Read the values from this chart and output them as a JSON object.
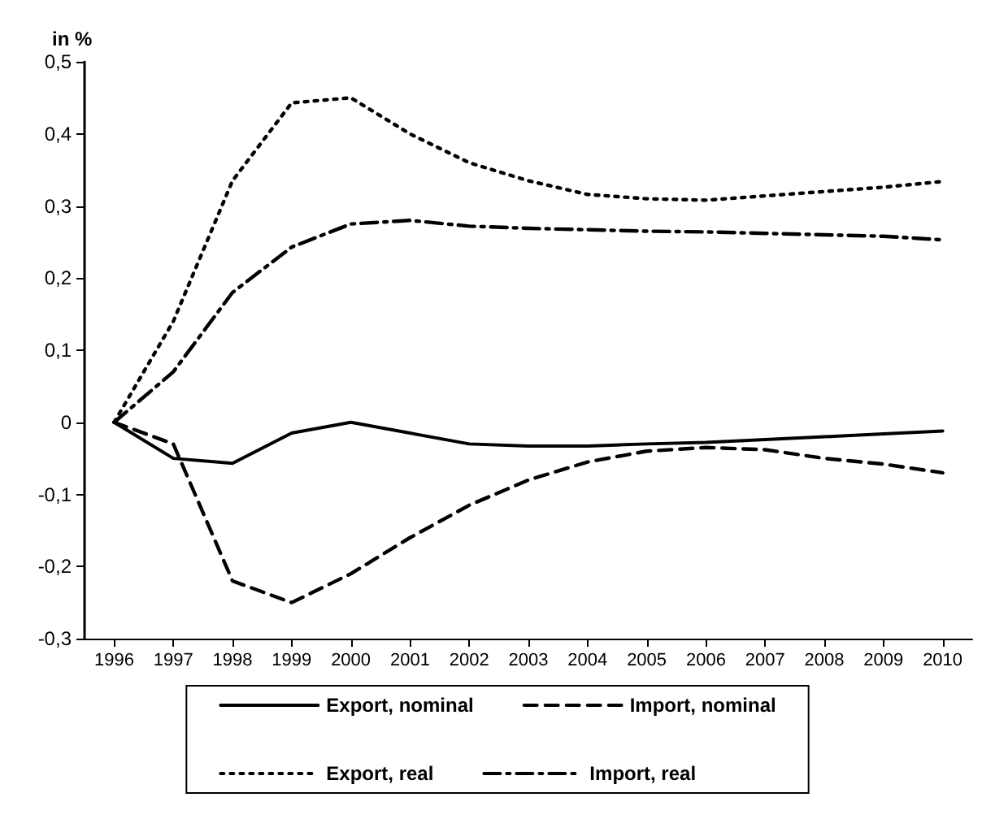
{
  "chart_data": {
    "type": "line",
    "ylabel": "in %",
    "categories": [
      "1996",
      "1997",
      "1998",
      "1999",
      "2000",
      "2001",
      "2002",
      "2003",
      "2004",
      "2005",
      "2006",
      "2007",
      "2008",
      "2009",
      "2010"
    ],
    "series": [
      {
        "name": "Export, nominal",
        "color": "#000000",
        "line_style": "solid",
        "values": [
          0,
          -0.05,
          -0.057,
          -0.015,
          0,
          -0.015,
          -0.03,
          -0.033,
          -0.033,
          -0.03,
          -0.028,
          -0.024,
          -0.02,
          -0.016,
          -0.012
        ]
      },
      {
        "name": "Import, nominal",
        "color": "#000000",
        "line_style": "dashed",
        "values": [
          0,
          -0.03,
          -0.22,
          -0.25,
          -0.21,
          -0.16,
          -0.115,
          -0.08,
          -0.055,
          -0.04,
          -0.035,
          -0.038,
          -0.05,
          -0.058,
          -0.07
        ]
      },
      {
        "name": "Export, real",
        "color": "#000000",
        "line_style": "dotted",
        "values": [
          0,
          0.14,
          0.335,
          0.443,
          0.45,
          0.4,
          0.36,
          0.335,
          0.316,
          0.31,
          0.308,
          0.314,
          0.32,
          0.326,
          0.334
        ]
      },
      {
        "name": "Import, real",
        "color": "#000000",
        "line_style": "dashdot",
        "values": [
          0,
          0.07,
          0.18,
          0.243,
          0.275,
          0.28,
          0.272,
          0.269,
          0.267,
          0.265,
          0.264,
          0.262,
          0.26,
          0.258,
          0.253
        ]
      }
    ],
    "ylim": [
      -0.3,
      0.5
    ],
    "yticks": [
      {
        "value": -0.3,
        "label": "-0,3"
      },
      {
        "value": -0.2,
        "label": "-0,2"
      },
      {
        "value": -0.1,
        "label": "-0,1"
      },
      0,
      {
        "value": 0.1,
        "label": "0,1"
      },
      {
        "value": 0.2,
        "label": "0,2"
      },
      {
        "value": 0.3,
        "label": "0,3"
      },
      {
        "value": 0.4,
        "label": "0,4"
      },
      {
        "value": 0.5,
        "label": "0,5"
      }
    ],
    "grid": false,
    "legend": "bottom",
    "marker": "none"
  }
}
